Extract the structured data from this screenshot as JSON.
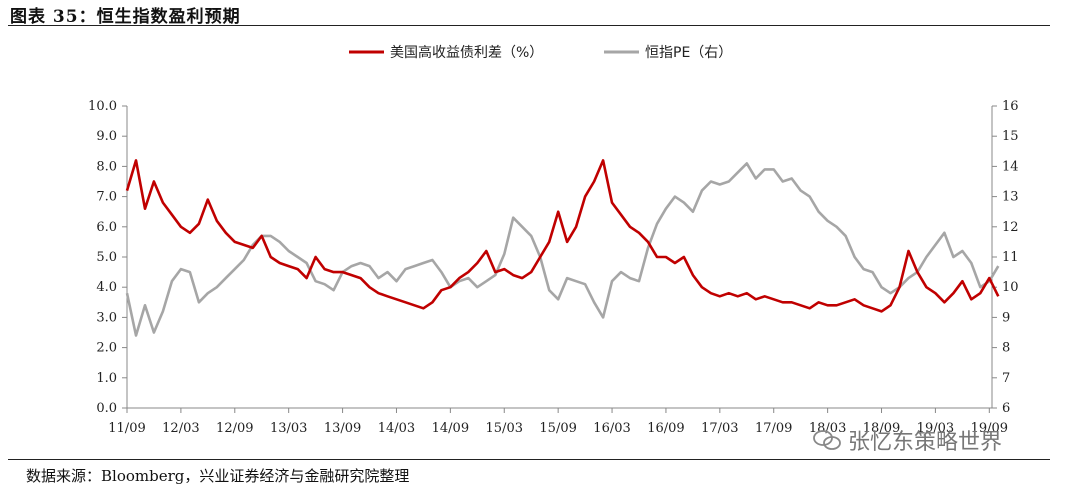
{
  "figure_title": "图表 35：恒生指数盈利预期",
  "source_note": "数据来源：Bloomberg，兴业证券经济与金融研究院整理",
  "watermark": "张忆东策略世界",
  "colors": {
    "spread": "#c00000",
    "pe": "#a6a6a6",
    "axis": "#888888"
  },
  "chart_data": {
    "type": "line",
    "legend_position": "top-center",
    "x_ticks": [
      "11/09",
      "12/03",
      "12/09",
      "13/03",
      "13/09",
      "14/03",
      "14/09",
      "15/03",
      "15/09",
      "16/03",
      "16/09",
      "17/03",
      "17/09",
      "18/03",
      "18/09",
      "19/03",
      "19/09"
    ],
    "left_axis": {
      "ylim": [
        0,
        10
      ],
      "ticks": [
        "0.0",
        "1.0",
        "2.0",
        "3.0",
        "4.0",
        "5.0",
        "6.0",
        "7.0",
        "8.0",
        "9.0",
        "10.0"
      ]
    },
    "right_axis": {
      "ylim": [
        6,
        16
      ],
      "ticks": [
        "6",
        "7",
        "8",
        "9",
        "10",
        "11",
        "12",
        "13",
        "14",
        "15",
        "16"
      ]
    },
    "series": [
      {
        "name": "美国高收益债利差（%）",
        "axis": "left",
        "points": [
          [
            "11/09",
            7.2
          ],
          [
            "11/10",
            8.2
          ],
          [
            "11/11",
            6.6
          ],
          [
            "11/12",
            7.5
          ],
          [
            "12/01",
            6.8
          ],
          [
            "12/02",
            6.4
          ],
          [
            "12/03",
            6.0
          ],
          [
            "12/04",
            5.8
          ],
          [
            "12/05",
            6.1
          ],
          [
            "12/06",
            6.9
          ],
          [
            "12/07",
            6.2
          ],
          [
            "12/08",
            5.8
          ],
          [
            "12/09",
            5.5
          ],
          [
            "12/10",
            5.4
          ],
          [
            "12/11",
            5.3
          ],
          [
            "12/12",
            5.7
          ],
          [
            "13/01",
            5.0
          ],
          [
            "13/02",
            4.8
          ],
          [
            "13/03",
            4.7
          ],
          [
            "13/04",
            4.6
          ],
          [
            "13/05",
            4.3
          ],
          [
            "13/06",
            5.0
          ],
          [
            "13/07",
            4.6
          ],
          [
            "13/08",
            4.5
          ],
          [
            "13/09",
            4.5
          ],
          [
            "13/10",
            4.4
          ],
          [
            "13/11",
            4.3
          ],
          [
            "13/12",
            4.0
          ],
          [
            "14/01",
            3.8
          ],
          [
            "14/02",
            3.7
          ],
          [
            "14/03",
            3.6
          ],
          [
            "14/04",
            3.5
          ],
          [
            "14/05",
            3.4
          ],
          [
            "14/06",
            3.3
          ],
          [
            "14/07",
            3.5
          ],
          [
            "14/08",
            3.9
          ],
          [
            "14/09",
            4.0
          ],
          [
            "14/10",
            4.3
          ],
          [
            "14/11",
            4.5
          ],
          [
            "14/12",
            4.8
          ],
          [
            "15/01",
            5.2
          ],
          [
            "15/02",
            4.5
          ],
          [
            "15/03",
            4.6
          ],
          [
            "15/04",
            4.4
          ],
          [
            "15/05",
            4.3
          ],
          [
            "15/06",
            4.5
          ],
          [
            "15/07",
            5.0
          ],
          [
            "15/08",
            5.5
          ],
          [
            "15/09",
            6.5
          ],
          [
            "15/10",
            5.5
          ],
          [
            "15/11",
            6.0
          ],
          [
            "15/12",
            7.0
          ],
          [
            "16/01",
            7.5
          ],
          [
            "16/02",
            8.2
          ],
          [
            "16/03",
            6.8
          ],
          [
            "16/04",
            6.4
          ],
          [
            "16/05",
            6.0
          ],
          [
            "16/06",
            5.8
          ],
          [
            "16/07",
            5.5
          ],
          [
            "16/08",
            5.0
          ],
          [
            "16/09",
            5.0
          ],
          [
            "16/10",
            4.8
          ],
          [
            "16/11",
            5.0
          ],
          [
            "16/12",
            4.4
          ],
          [
            "17/01",
            4.0
          ],
          [
            "17/02",
            3.8
          ],
          [
            "17/03",
            3.7
          ],
          [
            "17/04",
            3.8
          ],
          [
            "17/05",
            3.7
          ],
          [
            "17/06",
            3.8
          ],
          [
            "17/07",
            3.6
          ],
          [
            "17/08",
            3.7
          ],
          [
            "17/09",
            3.6
          ],
          [
            "17/10",
            3.5
          ],
          [
            "17/11",
            3.5
          ],
          [
            "17/12",
            3.4
          ],
          [
            "18/01",
            3.3
          ],
          [
            "18/02",
            3.5
          ],
          [
            "18/03",
            3.4
          ],
          [
            "18/04",
            3.4
          ],
          [
            "18/05",
            3.5
          ],
          [
            "18/06",
            3.6
          ],
          [
            "18/07",
            3.4
          ],
          [
            "18/08",
            3.3
          ],
          [
            "18/09",
            3.2
          ],
          [
            "18/10",
            3.4
          ],
          [
            "18/11",
            4.0
          ],
          [
            "18/12",
            5.2
          ],
          [
            "19/01",
            4.5
          ],
          [
            "19/02",
            4.0
          ],
          [
            "19/03",
            3.8
          ],
          [
            "19/04",
            3.5
          ],
          [
            "19/05",
            3.8
          ],
          [
            "19/06",
            4.2
          ],
          [
            "19/07",
            3.6
          ],
          [
            "19/08",
            3.8
          ],
          [
            "19/09",
            4.3
          ],
          [
            "19/10",
            3.7
          ]
        ]
      },
      {
        "name": "恒指PE（右）",
        "axis": "right",
        "points": [
          [
            "11/09",
            9.8
          ],
          [
            "11/10",
            8.4
          ],
          [
            "11/11",
            9.4
          ],
          [
            "11/12",
            8.5
          ],
          [
            "12/01",
            9.2
          ],
          [
            "12/02",
            10.2
          ],
          [
            "12/03",
            10.6
          ],
          [
            "12/04",
            10.5
          ],
          [
            "12/05",
            9.5
          ],
          [
            "12/06",
            9.8
          ],
          [
            "12/07",
            10.0
          ],
          [
            "12/08",
            10.3
          ],
          [
            "12/09",
            10.6
          ],
          [
            "12/10",
            10.9
          ],
          [
            "12/11",
            11.4
          ],
          [
            "12/12",
            11.7
          ],
          [
            "13/01",
            11.7
          ],
          [
            "13/02",
            11.5
          ],
          [
            "13/03",
            11.2
          ],
          [
            "13/04",
            11.0
          ],
          [
            "13/05",
            10.8
          ],
          [
            "13/06",
            10.2
          ],
          [
            "13/07",
            10.1
          ],
          [
            "13/08",
            9.9
          ],
          [
            "13/09",
            10.5
          ],
          [
            "13/10",
            10.7
          ],
          [
            "13/11",
            10.8
          ],
          [
            "13/12",
            10.7
          ],
          [
            "14/01",
            10.3
          ],
          [
            "14/02",
            10.5
          ],
          [
            "14/03",
            10.2
          ],
          [
            "14/04",
            10.6
          ],
          [
            "14/05",
            10.7
          ],
          [
            "14/06",
            10.8
          ],
          [
            "14/07",
            10.9
          ],
          [
            "14/08",
            10.5
          ],
          [
            "14/09",
            10.0
          ],
          [
            "14/10",
            10.2
          ],
          [
            "14/11",
            10.3
          ],
          [
            "14/12",
            10.0
          ],
          [
            "15/01",
            10.2
          ],
          [
            "15/02",
            10.4
          ],
          [
            "15/03",
            11.1
          ],
          [
            "15/04",
            12.3
          ],
          [
            "15/05",
            12.0
          ],
          [
            "15/06",
            11.7
          ],
          [
            "15/07",
            11.0
          ],
          [
            "15/08",
            9.9
          ],
          [
            "15/09",
            9.6
          ],
          [
            "15/10",
            10.3
          ],
          [
            "15/11",
            10.2
          ],
          [
            "15/12",
            10.1
          ],
          [
            "16/01",
            9.5
          ],
          [
            "16/02",
            9.0
          ],
          [
            "16/03",
            10.2
          ],
          [
            "16/04",
            10.5
          ],
          [
            "16/05",
            10.3
          ],
          [
            "16/06",
            10.2
          ],
          [
            "16/07",
            11.3
          ],
          [
            "16/08",
            12.1
          ],
          [
            "16/09",
            12.6
          ],
          [
            "16/10",
            13.0
          ],
          [
            "16/11",
            12.8
          ],
          [
            "16/12",
            12.5
          ],
          [
            "17/01",
            13.2
          ],
          [
            "17/02",
            13.5
          ],
          [
            "17/03",
            13.4
          ],
          [
            "17/04",
            13.5
          ],
          [
            "17/05",
            13.8
          ],
          [
            "17/06",
            14.1
          ],
          [
            "17/07",
            13.6
          ],
          [
            "17/08",
            13.9
          ],
          [
            "17/09",
            13.9
          ],
          [
            "17/10",
            13.5
          ],
          [
            "17/11",
            13.6
          ],
          [
            "17/12",
            13.2
          ],
          [
            "18/01",
            13.0
          ],
          [
            "18/02",
            12.5
          ],
          [
            "18/03",
            12.2
          ],
          [
            "18/04",
            12.0
          ],
          [
            "18/05",
            11.7
          ],
          [
            "18/06",
            11.0
          ],
          [
            "18/07",
            10.6
          ],
          [
            "18/08",
            10.5
          ],
          [
            "18/09",
            10.0
          ],
          [
            "18/10",
            9.8
          ],
          [
            "18/11",
            10.0
          ],
          [
            "18/12",
            10.3
          ],
          [
            "19/01",
            10.5
          ],
          [
            "19/02",
            11.0
          ],
          [
            "19/03",
            11.4
          ],
          [
            "19/04",
            11.8
          ],
          [
            "19/05",
            11.0
          ],
          [
            "19/06",
            11.2
          ],
          [
            "19/07",
            10.8
          ],
          [
            "19/08",
            10.0
          ],
          [
            "19/09",
            10.2
          ],
          [
            "19/10",
            10.7
          ]
        ]
      }
    ]
  }
}
